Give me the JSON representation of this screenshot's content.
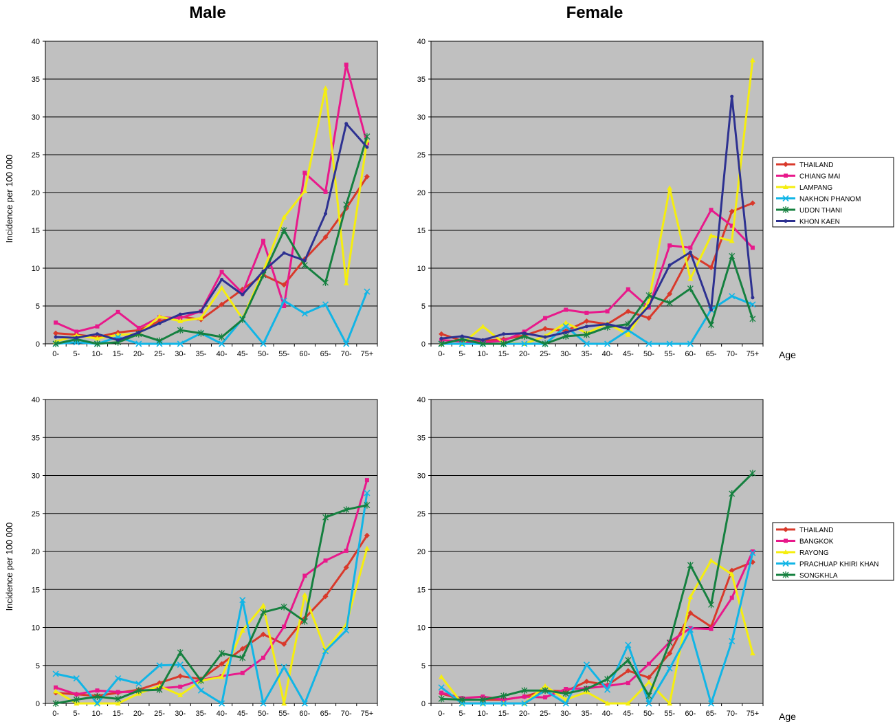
{
  "column_titles": [
    "Male",
    "Female"
  ],
  "age_label": "Age",
  "chart_data": [
    {
      "type": "line",
      "title": "Male",
      "ylabel": "Incidence per 100 000",
      "xlabel": "",
      "ylim": [
        0,
        40
      ],
      "yticks": [
        0,
        5,
        10,
        15,
        20,
        25,
        30,
        35,
        40
      ],
      "grid": true,
      "categories": [
        "0-",
        "5-",
        "10-",
        "15-",
        "20-",
        "25-",
        "30-",
        "35-",
        "40-",
        "45-",
        "50-",
        "55-",
        "60-",
        "65-",
        "70-",
        "75+"
      ],
      "series": [
        {
          "name": "THAILAND",
          "color": "#d9392b",
          "marker": "diamond",
          "values": [
            1.4,
            1.2,
            0.9,
            1.5,
            1.8,
            3.0,
            3.6,
            3.2,
            5.2,
            7.2,
            9.1,
            7.8,
            11.2,
            14.1,
            17.9,
            22.1
          ]
        },
        {
          "name": "CHIANG MAI",
          "color": "#e8198b",
          "marker": "square",
          "values": [
            2.8,
            1.6,
            2.3,
            4.2,
            2.1,
            3.5,
            3.4,
            4.3,
            9.5,
            6.7,
            13.6,
            5.0,
            22.6,
            20.1,
            36.9,
            26.5
          ]
        },
        {
          "name": "LAMPANG",
          "color": "#f5ee0f",
          "marker": "triangle",
          "values": [
            0.3,
            1.1,
            0.7,
            1.2,
            1.3,
            3.6,
            3.0,
            3.4,
            7.4,
            3.3,
            9.6,
            16.7,
            20.2,
            33.8,
            8.0,
            26.9
          ]
        },
        {
          "name": "NAKHON PHANOM",
          "color": "#11b5e6",
          "marker": "x",
          "values": [
            0.0,
            0.2,
            0.0,
            0.9,
            0.0,
            0.0,
            0.0,
            1.4,
            0.0,
            3.3,
            0.0,
            5.7,
            4.0,
            5.2,
            0.0,
            6.9
          ]
        },
        {
          "name": "UDON THANI",
          "color": "#15803f",
          "marker": "star",
          "values": [
            0.0,
            0.6,
            0.0,
            0.2,
            1.3,
            0.4,
            1.8,
            1.4,
            0.9,
            3.2,
            9.1,
            15.0,
            10.4,
            8.1,
            18.4,
            27.4
          ]
        },
        {
          "name": "KHON KAEN",
          "color": "#2d3191",
          "marker": "circle",
          "values": [
            0.9,
            0.8,
            1.3,
            0.5,
            1.5,
            2.7,
            3.9,
            4.3,
            8.5,
            6.5,
            9.6,
            12.0,
            11.0,
            17.2,
            29.1,
            26.0
          ]
        }
      ]
    },
    {
      "type": "line",
      "title": "Female",
      "ylabel": "",
      "xlabel": "Age",
      "ylim": [
        0,
        40
      ],
      "yticks": [
        0,
        5,
        10,
        15,
        20,
        25,
        30,
        35,
        40
      ],
      "grid": true,
      "legend": "right",
      "categories": [
        "0-",
        "5-",
        "10-",
        "15-",
        "20-",
        "25-",
        "30-",
        "35-",
        "40-",
        "45-",
        "50-",
        "55-",
        "60-",
        "65-",
        "70-",
        "75+"
      ],
      "series": [
        {
          "name": "THAILAND",
          "color": "#d9392b",
          "marker": "diamond",
          "values": [
            1.3,
            0.4,
            0.4,
            0.6,
            1.1,
            2.0,
            1.7,
            3.0,
            2.6,
            4.3,
            3.4,
            6.6,
            11.8,
            10.1,
            17.5,
            18.6
          ]
        },
        {
          "name": "CHIANG MAI",
          "color": "#e8198b",
          "marker": "square",
          "values": [
            0.5,
            0.3,
            0.2,
            0.4,
            1.6,
            3.4,
            4.5,
            4.1,
            4.3,
            7.2,
            4.8,
            13.0,
            12.7,
            17.7,
            15.6,
            12.7
          ]
        },
        {
          "name": "LAMPANG",
          "color": "#f5ee0f",
          "marker": "triangle",
          "values": [
            0.0,
            0.0,
            2.3,
            0.1,
            0.0,
            1.0,
            2.8,
            1.4,
            2.7,
            1.2,
            5.6,
            20.6,
            8.6,
            14.3,
            13.6,
            37.5
          ]
        },
        {
          "name": "NAKHON PHANOM",
          "color": "#11b5e6",
          "marker": "x",
          "values": [
            0.0,
            0.0,
            0.0,
            0.0,
            0.0,
            0.0,
            2.3,
            0.0,
            0.0,
            1.8,
            0.0,
            0.0,
            0.0,
            4.5,
            6.3,
            5.2
          ]
        },
        {
          "name": "UDON THANI",
          "color": "#15803f",
          "marker": "star",
          "values": [
            0.0,
            0.6,
            0.0,
            0.0,
            1.0,
            0.0,
            1.0,
            1.2,
            2.2,
            2.6,
            6.4,
            5.4,
            7.3,
            2.5,
            11.6,
            3.3
          ]
        },
        {
          "name": "KHON KAEN",
          "color": "#2d3191",
          "marker": "circle",
          "values": [
            0.7,
            1.0,
            0.5,
            1.3,
            1.4,
            0.9,
            1.5,
            2.3,
            2.6,
            2.0,
            5.0,
            10.4,
            12.1,
            4.5,
            32.7,
            6.1
          ]
        }
      ]
    },
    {
      "type": "line",
      "title": "",
      "ylabel": "Incidence per 100 000",
      "xlabel": "",
      "ylim": [
        0,
        40
      ],
      "yticks": [
        0,
        5,
        10,
        15,
        20,
        25,
        30,
        35,
        40
      ],
      "grid": true,
      "categories": [
        "0-",
        "5-",
        "10-",
        "15-",
        "20-",
        "25-",
        "30-",
        "35-",
        "40-",
        "45-",
        "50-",
        "55-",
        "60-",
        "65-",
        "70-",
        "75+"
      ],
      "series": [
        {
          "name": "THAILAND",
          "color": "#d9392b",
          "marker": "diamond",
          "values": [
            1.4,
            1.2,
            1.0,
            1.4,
            1.8,
            2.7,
            3.6,
            3.2,
            5.2,
            7.2,
            9.1,
            7.8,
            11.2,
            14.1,
            17.9,
            22.1
          ]
        },
        {
          "name": "BANGKOK",
          "color": "#e8198b",
          "marker": "square",
          "values": [
            2.1,
            1.2,
            1.7,
            1.5,
            1.5,
            2.0,
            2.2,
            3.1,
            3.6,
            4.0,
            6.0,
            10.1,
            16.8,
            18.8,
            20.1,
            29.4
          ]
        },
        {
          "name": "RAYONG",
          "color": "#f5ee0f",
          "marker": "triangle",
          "values": [
            1.6,
            0.0,
            0.0,
            0.0,
            1.3,
            2.3,
            1.1,
            3.0,
            3.5,
            9.6,
            12.9,
            0.0,
            14.3,
            7.0,
            10.4,
            20.4
          ]
        },
        {
          "name": "PRACHUAP KHIRI KHAN",
          "color": "#11b5e6",
          "marker": "x",
          "values": [
            3.9,
            3.3,
            0.0,
            3.3,
            2.6,
            5.0,
            5.1,
            1.7,
            0.0,
            13.6,
            0.0,
            4.8,
            0.0,
            6.9,
            9.6,
            27.7
          ]
        },
        {
          "name": "SONGKHLA",
          "color": "#15803f",
          "marker": "star",
          "values": [
            0.0,
            0.5,
            0.9,
            0.6,
            1.7,
            1.8,
            6.7,
            3.0,
            6.6,
            6.0,
            12.0,
            12.7,
            10.8,
            24.5,
            25.5,
            26.1
          ]
        }
      ]
    },
    {
      "type": "line",
      "title": "",
      "ylabel": "",
      "xlabel": "Age",
      "ylim": [
        0,
        40
      ],
      "yticks": [
        0,
        5,
        10,
        15,
        20,
        25,
        30,
        35,
        40
      ],
      "grid": true,
      "legend": "right",
      "categories": [
        "0-",
        "5-",
        "10-",
        "15-",
        "20-",
        "25-",
        "30-",
        "35-",
        "40-",
        "45-",
        "50-",
        "55-",
        "60-",
        "65-",
        "70-",
        "75+"
      ],
      "series": [
        {
          "name": "THAILAND",
          "color": "#d9392b",
          "marker": "diamond",
          "values": [
            1.3,
            0.5,
            0.5,
            0.5,
            0.9,
            1.7,
            1.6,
            2.9,
            2.4,
            4.3,
            3.4,
            6.6,
            11.9,
            10.1,
            17.5,
            18.6
          ]
        },
        {
          "name": "BANGKOK",
          "color": "#e8198b",
          "marker": "square",
          "values": [
            1.4,
            0.7,
            0.9,
            0.5,
            0.9,
            0.8,
            1.9,
            2.0,
            2.3,
            2.7,
            5.2,
            8.1,
            9.9,
            9.8,
            13.9,
            20.0
          ]
        },
        {
          "name": "RAYONG",
          "color": "#f5ee0f",
          "marker": "triangle",
          "values": [
            3.5,
            0.0,
            0.0,
            0.0,
            0.0,
            2.3,
            0.5,
            1.5,
            0.0,
            0.0,
            2.8,
            0.0,
            14.0,
            18.8,
            17.0,
            6.6
          ]
        },
        {
          "name": "PRACHUAP KHIRI KHAN",
          "color": "#11b5e6",
          "marker": "x",
          "values": [
            2.1,
            0.0,
            0.0,
            0.0,
            0.0,
            1.7,
            0.0,
            5.1,
            1.8,
            7.7,
            0.0,
            4.6,
            9.7,
            0.0,
            8.2,
            19.8
          ]
        },
        {
          "name": "SONGKHLA",
          "color": "#15803f",
          "marker": "star",
          "values": [
            0.6,
            0.5,
            0.5,
            1.0,
            1.7,
            1.7,
            1.3,
            1.9,
            3.2,
            5.7,
            1.0,
            8.0,
            18.2,
            13.0,
            27.6,
            30.3
          ]
        }
      ]
    }
  ]
}
